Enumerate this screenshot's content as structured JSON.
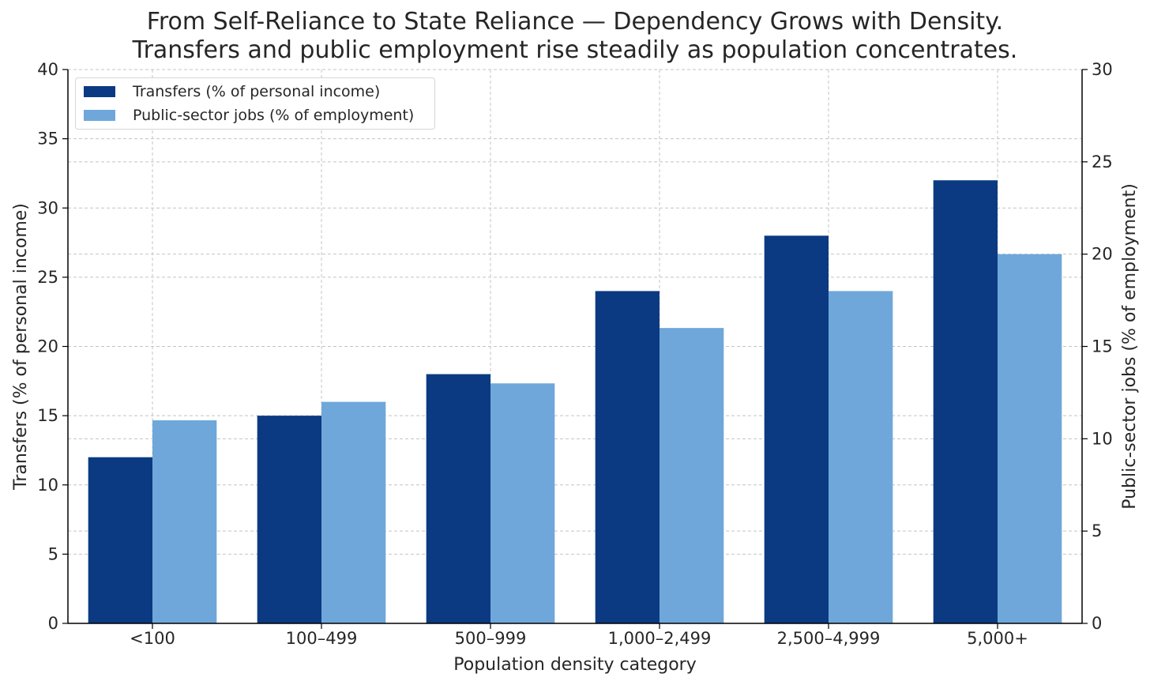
{
  "chart_data": {
    "type": "bar",
    "title": "From Self-Reliance to State Reliance — Dependency Grows with Density.",
    "subtitle": "Transfers and public employment rise steadily as population concentrates.",
    "xlabel": "Population density category",
    "ylabel": "Transfers (% of personal income)",
    "y2label": "Public-sector jobs (% of employment)",
    "categories": [
      "<100",
      "100–499",
      "500–999",
      "1,000–2,499",
      "2,500–4,999",
      "5,000+"
    ],
    "series": [
      {
        "name": "Transfers (% of personal income)",
        "axis": "left",
        "color": "#0b3a82",
        "values": [
          12,
          15,
          18,
          24,
          28,
          32
        ]
      },
      {
        "name": "Public-sector jobs (% of employment)",
        "axis": "right",
        "color": "#6fa7da",
        "values": [
          11,
          12,
          13,
          16,
          18,
          20
        ]
      }
    ],
    "ylim": [
      0,
      40
    ],
    "y2lim": [
      0,
      30
    ],
    "yticks": [
      0,
      5,
      10,
      15,
      20,
      25,
      30,
      35,
      40
    ],
    "y2ticks": [
      0,
      5,
      10,
      15,
      20,
      25,
      30
    ],
    "grid": true,
    "legend_position": "top-left"
  }
}
